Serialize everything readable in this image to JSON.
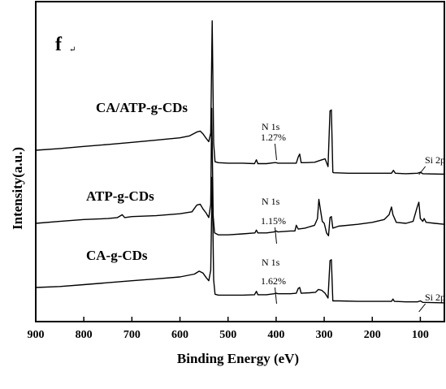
{
  "chart_data": {
    "type": "line",
    "panel_label": "f",
    "panel_mark": "↵",
    "xlabel": "Binding Energy (eV)",
    "ylabel": "Intensity(a.u.)",
    "xlim": [
      900,
      50
    ],
    "x_ticks": [
      900,
      800,
      700,
      600,
      500,
      400,
      300,
      200,
      100
    ],
    "y_ticks_visible": false,
    "grid": false,
    "series": [
      {
        "name": "CA/ATP-g-CDs",
        "points": [
          [
            900,
            0.0
          ],
          [
            850,
            0.18
          ],
          [
            800,
            0.4
          ],
          [
            750,
            0.6
          ],
          [
            700,
            0.82
          ],
          [
            650,
            1.05
          ],
          [
            600,
            1.3
          ],
          [
            580,
            1.5
          ],
          [
            565,
            1.9
          ],
          [
            558,
            2.0
          ],
          [
            552,
            1.7
          ],
          [
            545,
            1.2
          ],
          [
            540,
            0.9
          ],
          [
            536,
            1.8
          ],
          [
            533,
            13.5
          ],
          [
            530,
            0.7
          ],
          [
            527,
            -1.2
          ],
          [
            520,
            -1.3
          ],
          [
            500,
            -1.35
          ],
          [
            470,
            -1.35
          ],
          [
            445,
            -1.4
          ],
          [
            441,
            -1.0
          ],
          [
            438,
            -1.4
          ],
          [
            420,
            -1.4
          ],
          [
            404,
            -1.3
          ],
          [
            400,
            -1.3
          ],
          [
            396,
            -1.35
          ],
          [
            370,
            -1.35
          ],
          [
            358,
            -1.35
          ],
          [
            354,
            -0.7
          ],
          [
            351,
            -0.4
          ],
          [
            348,
            -1.3
          ],
          [
            340,
            -1.3
          ],
          [
            320,
            -1.25
          ],
          [
            305,
            -1.0
          ],
          [
            298,
            -0.9
          ],
          [
            292,
            -1.7
          ],
          [
            288,
            4.1
          ],
          [
            285,
            4.2
          ],
          [
            282,
            -2.3
          ],
          [
            280,
            -2.35
          ],
          [
            250,
            -2.4
          ],
          [
            200,
            -2.4
          ],
          [
            160,
            -2.4
          ],
          [
            156,
            -2.1
          ],
          [
            152,
            -2.4
          ],
          [
            130,
            -2.45
          ],
          [
            106,
            -2.4
          ],
          [
            100,
            -2.3
          ],
          [
            95,
            -2.45
          ],
          [
            50,
            -2.5
          ]
        ],
        "peak_labels": [
          {
            "text": "N 1s",
            "x": 399,
            "value": "1.27%"
          },
          {
            "text": "Si 2p",
            "x": 103
          }
        ]
      },
      {
        "name": "ATP-g-CDs",
        "points": [
          [
            900,
            0.0
          ],
          [
            850,
            0.2
          ],
          [
            800,
            0.4
          ],
          [
            750,
            0.5
          ],
          [
            730,
            0.6
          ],
          [
            720,
            0.9
          ],
          [
            715,
            0.6
          ],
          [
            700,
            0.7
          ],
          [
            650,
            0.8
          ],
          [
            600,
            1.0
          ],
          [
            575,
            1.2
          ],
          [
            565,
            1.9
          ],
          [
            558,
            2.0
          ],
          [
            552,
            1.5
          ],
          [
            546,
            1.1
          ],
          [
            540,
            0.6
          ],
          [
            536,
            2.0
          ],
          [
            534,
            12.0
          ],
          [
            531,
            0.8
          ],
          [
            528,
            -1.0
          ],
          [
            520,
            -1.2
          ],
          [
            500,
            -1.2
          ],
          [
            470,
            -1.1
          ],
          [
            444,
            -1.0
          ],
          [
            441,
            -0.7
          ],
          [
            438,
            -1.0
          ],
          [
            420,
            -1.0
          ],
          [
            404,
            -0.9
          ],
          [
            400,
            -0.8
          ],
          [
            396,
            -0.9
          ],
          [
            370,
            -0.8
          ],
          [
            361,
            -0.8
          ],
          [
            358,
            -0.2
          ],
          [
            354,
            -0.6
          ],
          [
            340,
            -0.5
          ],
          [
            320,
            -0.2
          ],
          [
            314,
            0.5
          ],
          [
            311,
            2.5
          ],
          [
            308,
            1.5
          ],
          [
            304,
            0.2
          ],
          [
            300,
            0.0
          ],
          [
            295,
            -1.0
          ],
          [
            291,
            -1.3
          ],
          [
            288,
            0.6
          ],
          [
            285,
            0.7
          ],
          [
            282,
            -0.5
          ],
          [
            270,
            -0.3
          ],
          [
            230,
            -0.1
          ],
          [
            200,
            0.1
          ],
          [
            175,
            0.4
          ],
          [
            165,
            0.9
          ],
          [
            160,
            1.7
          ],
          [
            157,
            0.9
          ],
          [
            150,
            0.1
          ],
          [
            130,
            0.0
          ],
          [
            115,
            0.2
          ],
          [
            106,
            1.8
          ],
          [
            103,
            2.2
          ],
          [
            100,
            0.5
          ],
          [
            95,
            0.2
          ],
          [
            92,
            0.5
          ],
          [
            88,
            0.1
          ],
          [
            70,
            0.0
          ],
          [
            50,
            -0.1
          ]
        ],
        "peak_labels": [
          {
            "text": "N 1s",
            "x": 399,
            "value": "1.15%"
          }
        ]
      },
      {
        "name": "CA-g-CDs",
        "points": [
          [
            900,
            0.0
          ],
          [
            850,
            0.1
          ],
          [
            800,
            0.3
          ],
          [
            750,
            0.5
          ],
          [
            700,
            0.7
          ],
          [
            650,
            0.9
          ],
          [
            600,
            1.1
          ],
          [
            570,
            1.4
          ],
          [
            560,
            1.7
          ],
          [
            552,
            1.5
          ],
          [
            545,
            1.0
          ],
          [
            540,
            0.7
          ],
          [
            536,
            1.8
          ],
          [
            533,
            11.5
          ],
          [
            530,
            0.8
          ],
          [
            527,
            -0.7
          ],
          [
            520,
            -0.8
          ],
          [
            500,
            -0.8
          ],
          [
            470,
            -0.8
          ],
          [
            445,
            -0.75
          ],
          [
            441,
            -0.4
          ],
          [
            438,
            -0.75
          ],
          [
            420,
            -0.75
          ],
          [
            404,
            -0.65
          ],
          [
            400,
            -0.6
          ],
          [
            396,
            -0.65
          ],
          [
            370,
            -0.65
          ],
          [
            358,
            -0.6
          ],
          [
            354,
            -0.1
          ],
          [
            351,
            0.0
          ],
          [
            348,
            -0.6
          ],
          [
            330,
            -0.55
          ],
          [
            318,
            -0.5
          ],
          [
            312,
            -0.2
          ],
          [
            305,
            -0.3
          ],
          [
            298,
            -0.6
          ],
          [
            292,
            -1.1
          ],
          [
            288,
            2.8
          ],
          [
            285,
            2.9
          ],
          [
            282,
            -1.4
          ],
          [
            270,
            -1.4
          ],
          [
            230,
            -1.45
          ],
          [
            180,
            -1.45
          ],
          [
            160,
            -1.45
          ],
          [
            157,
            -1.2
          ],
          [
            154,
            -1.45
          ],
          [
            130,
            -1.5
          ],
          [
            106,
            -1.5
          ],
          [
            100,
            -1.4
          ],
          [
            95,
            -1.55
          ],
          [
            50,
            -1.6
          ]
        ],
        "peak_labels": [
          {
            "text": "N 1s",
            "x": 399,
            "value": "1.62%"
          },
          {
            "text": "Si 2p",
            "x": 103
          }
        ]
      }
    ]
  }
}
